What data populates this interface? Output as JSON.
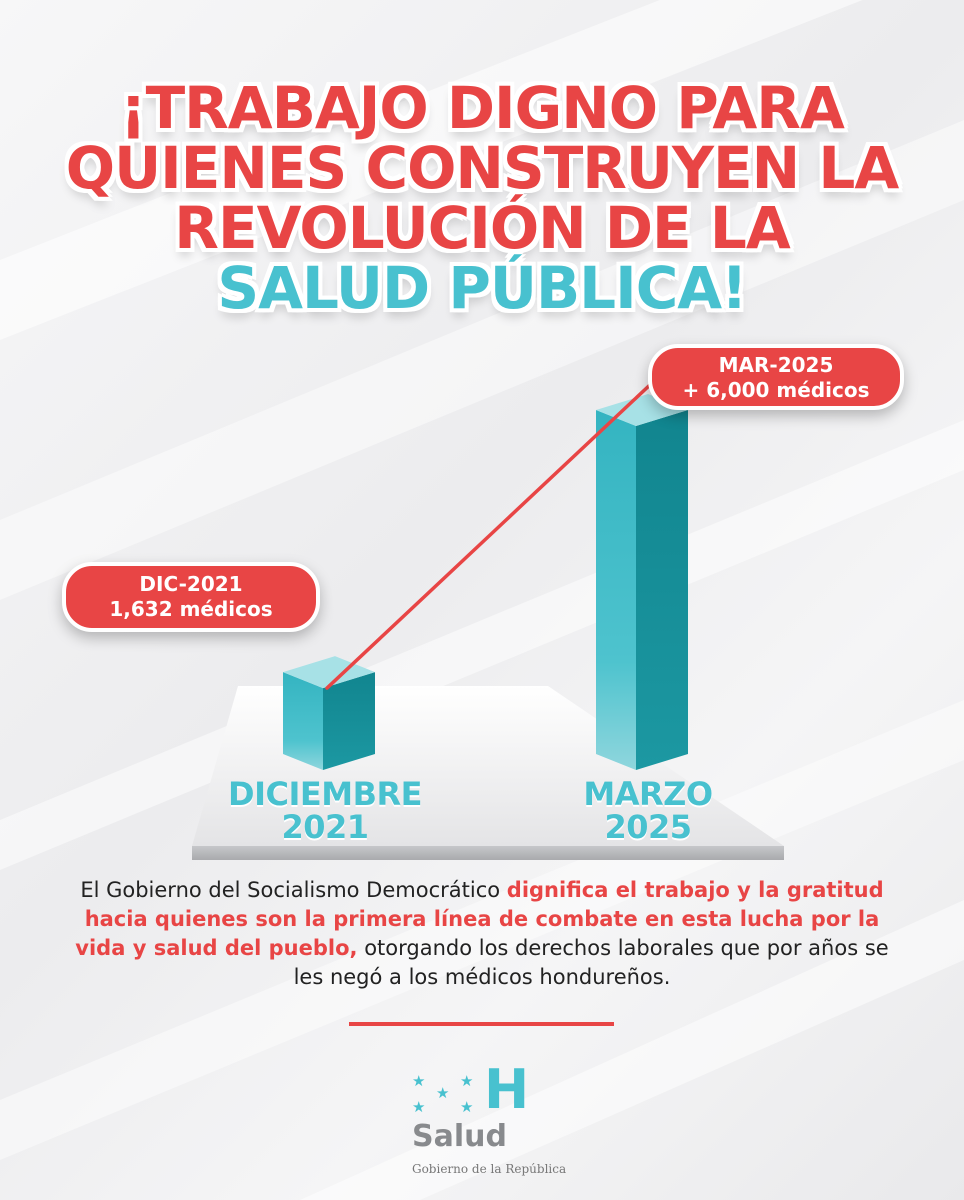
{
  "headline": {
    "line1": "¡TRABAJO DIGNO PARA",
    "line2": "QUIENES CONSTRUYEN LA",
    "line3": "REVOLUCIÓN DE LA",
    "line4": "SALUD PÚBLICA!"
  },
  "colors": {
    "accent_red": "#e84545",
    "accent_teal": "#48c1cf",
    "bar_front": "#3fbcc8",
    "bar_side": "#1a8f99"
  },
  "chart_data": {
    "type": "bar",
    "categories": [
      "DICIEMBRE 2021",
      "MARZO 2025"
    ],
    "values": [
      1632,
      6000
    ],
    "callouts": [
      {
        "line1": "DIC-2021",
        "line2": "1,632 médicos"
      },
      {
        "line1": "MAR-2025",
        "line2": "+ 6,000 médicos"
      }
    ],
    "category_labels": [
      {
        "line1": "DICIEMBRE",
        "line2": "2021"
      },
      {
        "line1": "MARZO",
        "line2": "2025"
      }
    ]
  },
  "body": {
    "part1": "El Gobierno del Socialismo Democrático ",
    "highlight": "dignifica el trabajo y la gratitud hacia quienes son la primera línea de combate en esta lucha por la vida y salud del pueblo,",
    "part2": " otorgando los derechos laborales que por años se les negó a los médicos hondureños."
  },
  "logo": {
    "wordmark": "Salud",
    "letter": "H",
    "subtitle": "Gobierno de la República",
    "icon": "five-stars-icon"
  }
}
